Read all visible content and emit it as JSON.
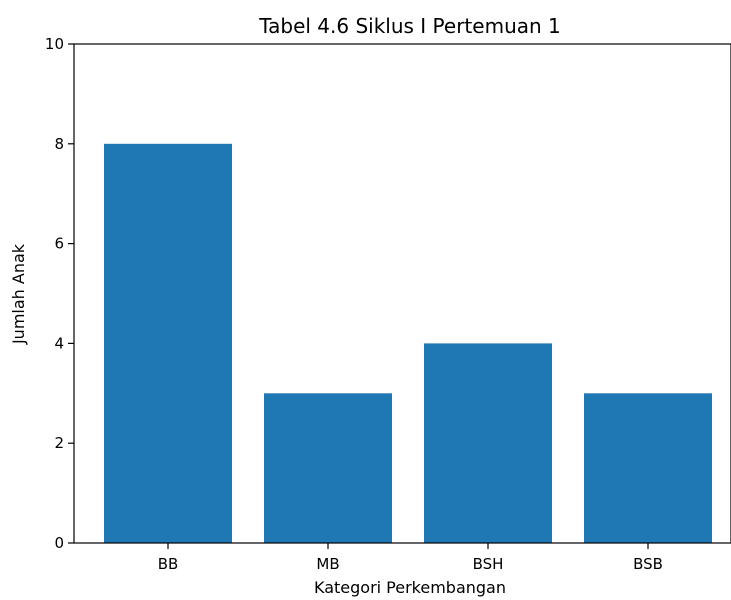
{
  "chart_data": {
    "type": "bar",
    "title": "Tabel 4.6 Siklus I Pertemuan 1",
    "xlabel": "Kategori Perkembangan",
    "ylabel": "Jumlah Anak",
    "categories": [
      "BB",
      "MB",
      "BSH",
      "BSB"
    ],
    "values": [
      8,
      3,
      4,
      3
    ],
    "ylim": [
      0,
      10
    ],
    "yticks": [
      0,
      2,
      4,
      6,
      8,
      10
    ],
    "grid": false,
    "bar_color": "#1f77b4"
  }
}
